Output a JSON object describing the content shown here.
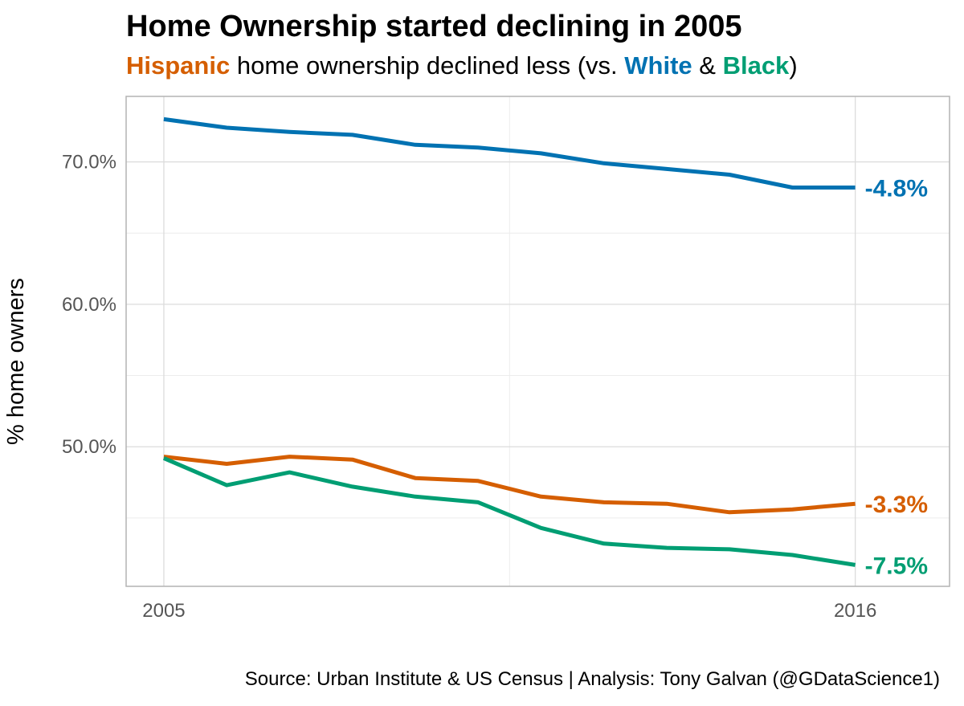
{
  "chart_data": {
    "type": "line",
    "title": "Home Ownership started declining in 2005",
    "subtitle": {
      "hispanic": "Hispanic",
      "middle": " home ownership declined less (vs. ",
      "white": "White",
      "amp": " & ",
      "black": "Black",
      "end": ")"
    },
    "ylabel": "% home owners",
    "xlabel": "",
    "caption": "Source: Urban Institute & US Census  |  Analysis: Tony Galvan (@GDataScience1)",
    "x": [
      2005,
      2006,
      2007,
      2008,
      2009,
      2010,
      2011,
      2012,
      2013,
      2014,
      2015,
      2016
    ],
    "xlim": [
      2004.4,
      2017.5
    ],
    "ylim": [
      40.2,
      74.6
    ],
    "xticks": [
      2005,
      2016
    ],
    "yticks": [
      50,
      60,
      70
    ],
    "ytick_labels": [
      "50.0%",
      "60.0%",
      "70.0%"
    ],
    "grid": true,
    "series": [
      {
        "name": "White",
        "color": "#0072B2",
        "values": [
          73.0,
          72.4,
          72.1,
          71.9,
          71.2,
          71.0,
          70.6,
          69.9,
          69.5,
          69.1,
          68.2,
          68.2
        ],
        "end_label": "-4.8%"
      },
      {
        "name": "Hispanic",
        "color": "#D55E00",
        "values": [
          49.3,
          48.8,
          49.3,
          49.1,
          47.8,
          47.6,
          46.5,
          46.1,
          46.0,
          45.4,
          45.6,
          46.0
        ],
        "end_label": "-3.3%"
      },
      {
        "name": "Black",
        "color": "#009E73",
        "values": [
          49.2,
          47.3,
          48.2,
          47.2,
          46.5,
          46.1,
          44.3,
          43.2,
          42.9,
          42.8,
          42.4,
          41.7
        ],
        "end_label": "-7.5%"
      }
    ]
  }
}
